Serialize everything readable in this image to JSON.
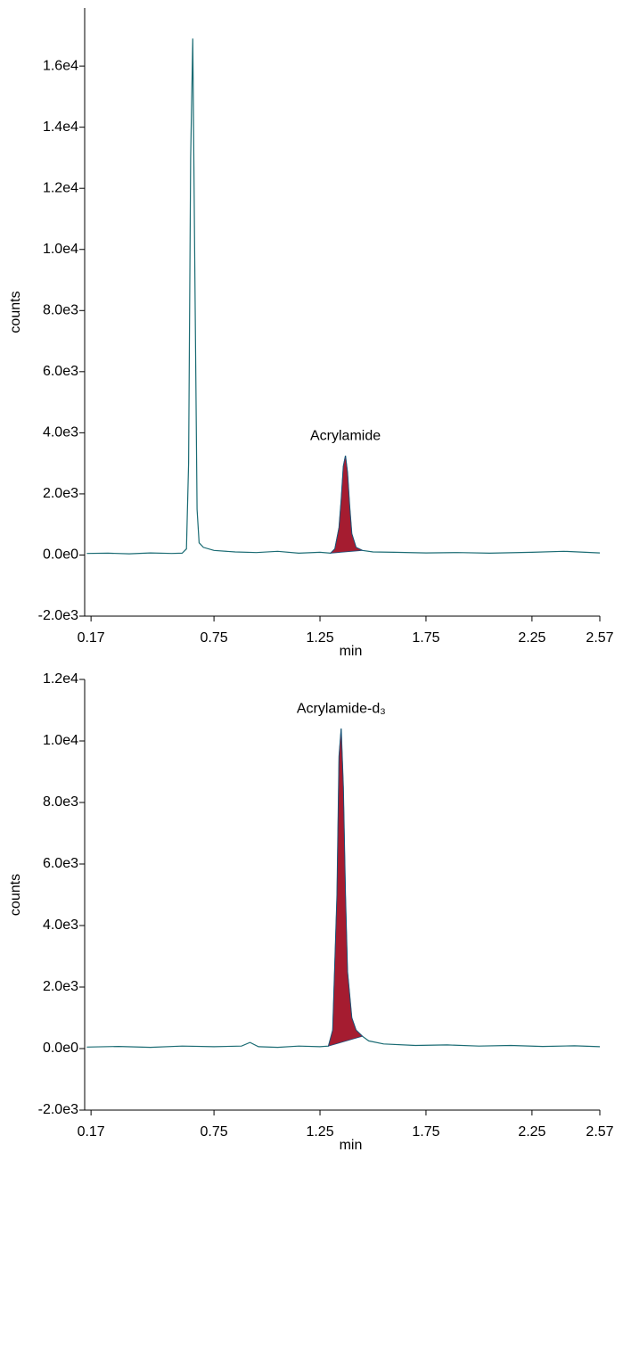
{
  "chart_data": [
    {
      "type": "line",
      "y_label": "counts",
      "x_label": "min",
      "xlim": [
        0.14,
        2.57
      ],
      "xticks": [
        0.17,
        0.75,
        1.25,
        1.75,
        2.25,
        2.57
      ],
      "ylim": [
        -2000,
        17900
      ],
      "yticks": [
        {
          "value": -2000,
          "label": "-2.0e3"
        },
        {
          "value": 0,
          "label": "0.0e0"
        },
        {
          "value": 2000,
          "label": "2.0e3"
        },
        {
          "value": 4000,
          "label": "4.0e3"
        },
        {
          "value": 6000,
          "label": "6.0e3"
        },
        {
          "value": 8000,
          "label": "8.0e3"
        },
        {
          "value": 10000,
          "label": "1.0e4"
        },
        {
          "value": 12000,
          "label": "1.2e4"
        },
        {
          "value": 14000,
          "label": "1.4e4"
        },
        {
          "value": 16000,
          "label": "1.6e4"
        }
      ],
      "series": [
        {
          "color": "#1a6b73",
          "x": [
            0.15,
            0.25,
            0.35,
            0.45,
            0.55,
            0.6,
            0.62,
            0.63,
            0.64,
            0.65,
            0.66,
            0.67,
            0.68,
            0.7,
            0.75,
            0.85,
            0.95,
            1.05,
            1.15,
            1.25,
            1.3,
            1.32,
            1.34,
            1.35,
            1.36,
            1.37,
            1.38,
            1.39,
            1.4,
            1.42,
            1.45,
            1.5,
            1.6,
            1.75,
            1.9,
            2.05,
            2.25,
            2.4,
            2.57
          ],
          "values": [
            50,
            60,
            40,
            70,
            50,
            60,
            200,
            3000,
            13000,
            16900,
            9000,
            1500,
            400,
            250,
            150,
            100,
            80,
            120,
            60,
            90,
            60,
            200,
            900,
            1800,
            2900,
            3250,
            2700,
            1600,
            700,
            250,
            150,
            100,
            90,
            70,
            80,
            60,
            90,
            120,
            70
          ]
        },
        {
          "name": "Acrylamide",
          "color": "#a51c30",
          "fill": true,
          "x": [
            1.3,
            1.32,
            1.34,
            1.35,
            1.36,
            1.37,
            1.38,
            1.39,
            1.4,
            1.42,
            1.45
          ],
          "values": [
            60,
            200,
            900,
            1800,
            2900,
            3250,
            2700,
            1600,
            700,
            250,
            150
          ]
        }
      ]
    },
    {
      "type": "line",
      "y_label": "counts",
      "x_label": "min",
      "xlim": [
        0.14,
        2.57
      ],
      "xticks": [
        0.17,
        0.75,
        1.25,
        1.75,
        2.25,
        2.57
      ],
      "ylim": [
        -2000,
        12000
      ],
      "yticks": [
        {
          "value": -2000,
          "label": "-2.0e3"
        },
        {
          "value": 0,
          "label": "0.0e0"
        },
        {
          "value": 2000,
          "label": "2.0e3"
        },
        {
          "value": 4000,
          "label": "4.0e3"
        },
        {
          "value": 6000,
          "label": "6.0e3"
        },
        {
          "value": 8000,
          "label": "8.0e3"
        },
        {
          "value": 10000,
          "label": "1.0e4"
        },
        {
          "value": 12000,
          "label": "1.2e4"
        }
      ],
      "series": [
        {
          "color": "#1a6b73",
          "x": [
            0.15,
            0.3,
            0.45,
            0.6,
            0.75,
            0.88,
            0.92,
            0.96,
            1.05,
            1.15,
            1.25,
            1.29,
            1.31,
            1.33,
            1.34,
            1.35,
            1.36,
            1.37,
            1.38,
            1.4,
            1.42,
            1.45,
            1.48,
            1.55,
            1.7,
            1.85,
            2.0,
            2.15,
            2.3,
            2.45,
            2.57
          ],
          "values": [
            50,
            70,
            40,
            80,
            60,
            80,
            200,
            60,
            40,
            80,
            60,
            80,
            600,
            5000,
            9500,
            10400,
            8500,
            5000,
            2500,
            1000,
            600,
            400,
            250,
            150,
            100,
            120,
            80,
            100,
            70,
            90,
            60
          ]
        },
        {
          "name": "Acrylamide-d₃",
          "color": "#a51c30",
          "fill": true,
          "x": [
            1.29,
            1.31,
            1.33,
            1.34,
            1.35,
            1.36,
            1.37,
            1.38,
            1.4,
            1.42,
            1.45
          ],
          "values": [
            80,
            600,
            5000,
            9500,
            10400,
            8500,
            5000,
            2500,
            1000,
            600,
            400
          ]
        }
      ]
    }
  ]
}
